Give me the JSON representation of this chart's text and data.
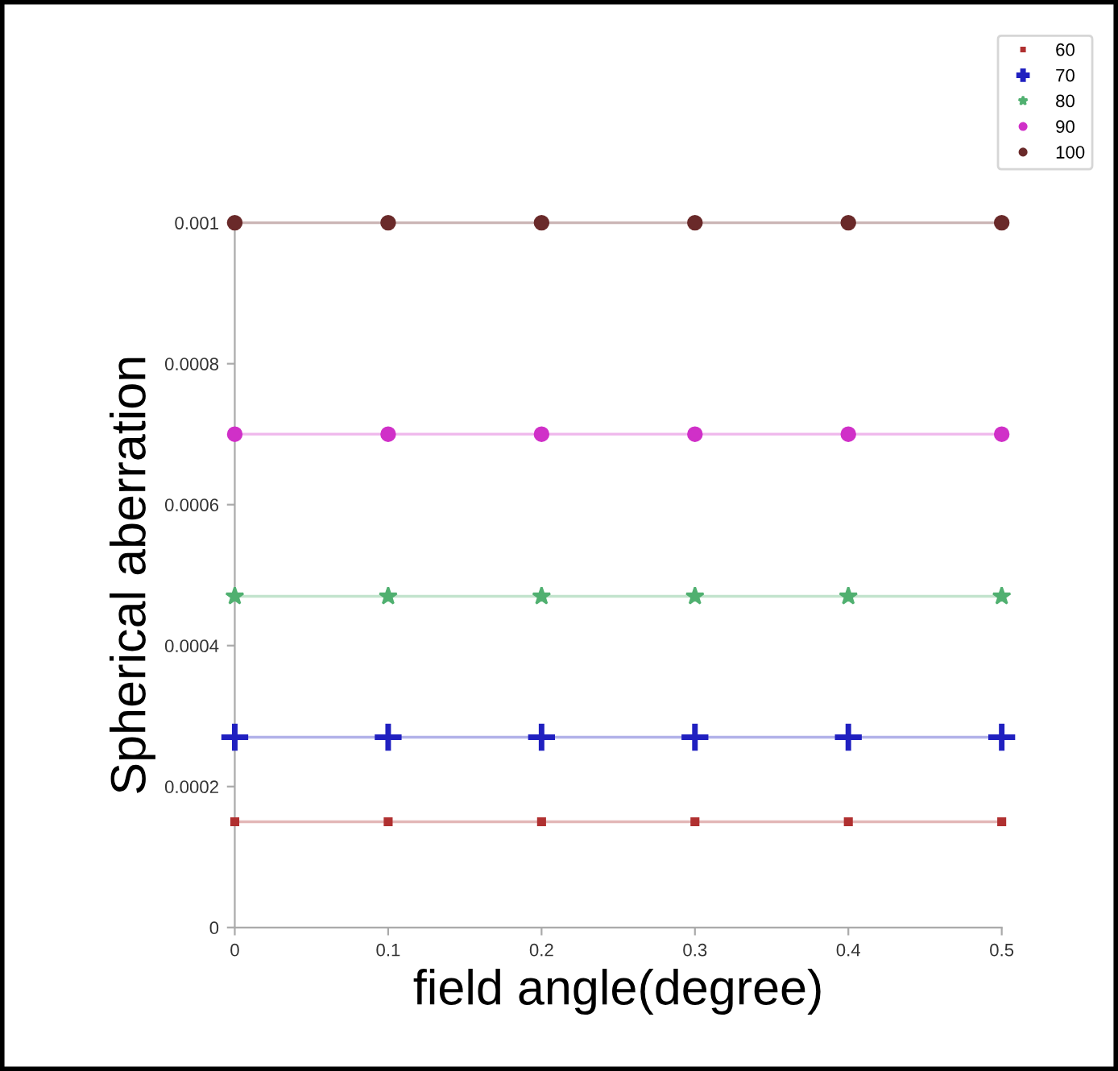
{
  "chart_data": {
    "type": "line",
    "xlabel": "field angle(degree)",
    "ylabel": "Spherical aberration",
    "x": [
      0,
      0.1,
      0.2,
      0.3,
      0.4,
      0.5
    ],
    "series": [
      {
        "name": "60",
        "color": "#b03030",
        "marker": "square",
        "values": [
          0.00015,
          0.00015,
          0.00015,
          0.00015,
          0.00015,
          0.00015
        ]
      },
      {
        "name": "70",
        "color": "#2020c0",
        "marker": "cross",
        "values": [
          0.00027,
          0.00027,
          0.00027,
          0.00027,
          0.00027,
          0.00027
        ]
      },
      {
        "name": "80",
        "color": "#50b070",
        "marker": "star",
        "values": [
          0.00047,
          0.00047,
          0.00047,
          0.00047,
          0.00047,
          0.00047
        ]
      },
      {
        "name": "90",
        "color": "#d030c8",
        "marker": "circle",
        "values": [
          0.0007,
          0.0007,
          0.0007,
          0.0007,
          0.0007,
          0.0007
        ]
      },
      {
        "name": "100",
        "color": "#6a2a2a",
        "marker": "circle",
        "values": [
          0.001,
          0.001,
          0.001,
          0.001,
          0.001,
          0.001
        ]
      }
    ],
    "xlim": [
      0,
      0.5
    ],
    "xticks": [
      0,
      0.1,
      0.2,
      0.3,
      0.4,
      0.5
    ],
    "ylim": [
      0,
      0.001
    ],
    "yticks": [
      0,
      0.0002,
      0.0004,
      0.0006,
      0.0008,
      0.001
    ],
    "grid": false,
    "legend": "top right",
    "line_style": "solid"
  }
}
